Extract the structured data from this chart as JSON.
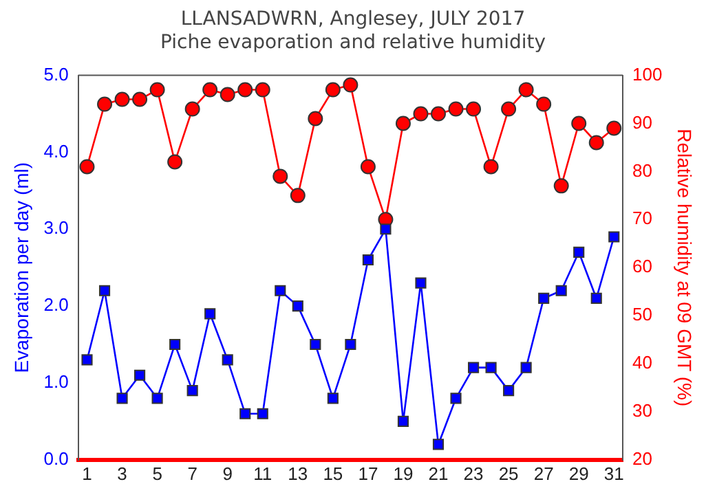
{
  "chart_data": {
    "type": "line",
    "title": "LLANSADWRN, Anglesey, JULY 2017",
    "subtitle": "Piche evaporation and relative humidity",
    "ylabel": "Evaporation per day (ml)",
    "y2label": "Relative humidity at 09 GMT (%)",
    "x": [
      1,
      2,
      3,
      4,
      5,
      6,
      7,
      8,
      9,
      10,
      11,
      12,
      13,
      14,
      15,
      16,
      17,
      18,
      19,
      20,
      21,
      22,
      23,
      24,
      25,
      26,
      27,
      28,
      29,
      30,
      31
    ],
    "xlim": [
      0.5,
      31.5
    ],
    "xticks": [
      1,
      3,
      5,
      7,
      9,
      11,
      13,
      15,
      17,
      19,
      21,
      23,
      25,
      27,
      29,
      31
    ],
    "ylim": [
      0,
      5
    ],
    "yticks": [
      {
        "value": 0,
        "label": "0.0"
      },
      {
        "value": 1,
        "label": "1.0"
      },
      {
        "value": 2,
        "label": "2.0"
      },
      {
        "value": 3,
        "label": "3.0"
      },
      {
        "value": 4,
        "label": "4.0"
      },
      {
        "value": 5,
        "label": "5.0"
      }
    ],
    "y2lim": [
      20,
      100
    ],
    "y2ticks": [
      20,
      30,
      40,
      50,
      60,
      70,
      80,
      90,
      100
    ],
    "grid": false,
    "legend": false,
    "series": [
      {
        "color": "#0000ff",
        "marker": "square",
        "values": [
          1.3,
          2.2,
          0.8,
          1.1,
          0.8,
          1.5,
          0.9,
          1.9,
          1.3,
          0.6,
          0.6,
          2.2,
          2.0,
          1.5,
          0.8,
          1.5,
          2.6,
          3.0,
          0.5,
          2.3,
          0.2,
          0.8,
          1.2,
          1.2,
          0.9,
          1.2,
          2.1,
          2.2,
          2.7,
          2.1,
          2.9
        ]
      },
      {
        "color": "#ff0000",
        "marker": "circle",
        "axis": "y2",
        "values": [
          81,
          94,
          95,
          95,
          97,
          82,
          93,
          97,
          96,
          97,
          97,
          79,
          75,
          91,
          97,
          98,
          81,
          70,
          90,
          92,
          92,
          93,
          93,
          81,
          93,
          97,
          94,
          77,
          90,
          86,
          89
        ]
      }
    ]
  }
}
